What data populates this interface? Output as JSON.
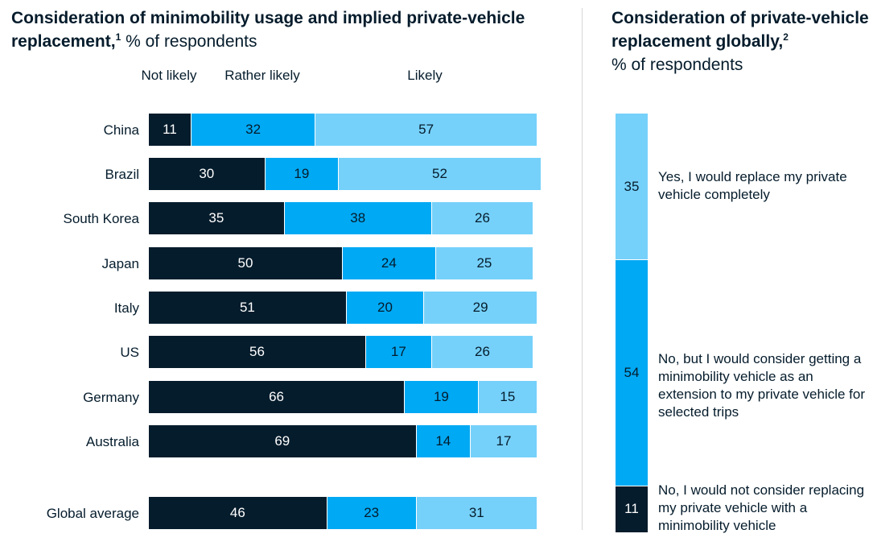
{
  "left_title": {
    "bold": "Consideration of minimobility usage and implied private-vehicle replacement,",
    "sup": "1",
    "regular": " % of respondents"
  },
  "right_title": {
    "bold": "Consideration of private-vehicle replacement globally,",
    "sup": "2",
    "regular": "% of respondents"
  },
  "colors": {
    "not_likely": "#051c2c",
    "rather_likely": "#00a9f4",
    "likely": "#76d1fa"
  },
  "chart_data": [
    {
      "type": "bar",
      "orientation": "horizontal",
      "stacked": true,
      "categories": [
        "China",
        "Brazil",
        "South Korea",
        "Japan",
        "Italy",
        "US",
        "Germany",
        "Australia",
        "Global average"
      ],
      "series": [
        {
          "name": "Not likely",
          "values": [
            11,
            30,
            35,
            50,
            51,
            56,
            66,
            69,
            46
          ]
        },
        {
          "name": "Rather likely",
          "values": [
            32,
            19,
            38,
            24,
            20,
            17,
            19,
            14,
            23
          ]
        },
        {
          "name": "Likely",
          "values": [
            57,
            52,
            26,
            25,
            29,
            26,
            15,
            17,
            31
          ]
        }
      ],
      "column_headers": [
        "Not likely",
        "Rather likely",
        "Likely"
      ],
      "xlim": [
        0,
        100
      ]
    },
    {
      "type": "bar",
      "orientation": "vertical",
      "stacked": true,
      "series": [
        {
          "name": "No, I would not consider replacing my private vehicle with a minimobility vehicle",
          "value": 11
        },
        {
          "name": "No, but I would consider getting a minimobility vehicle as an extension to my private vehicle for selected trips",
          "value": 54
        },
        {
          "name": "Yes, I would replace my private vehicle completely",
          "value": 35
        }
      ]
    }
  ]
}
